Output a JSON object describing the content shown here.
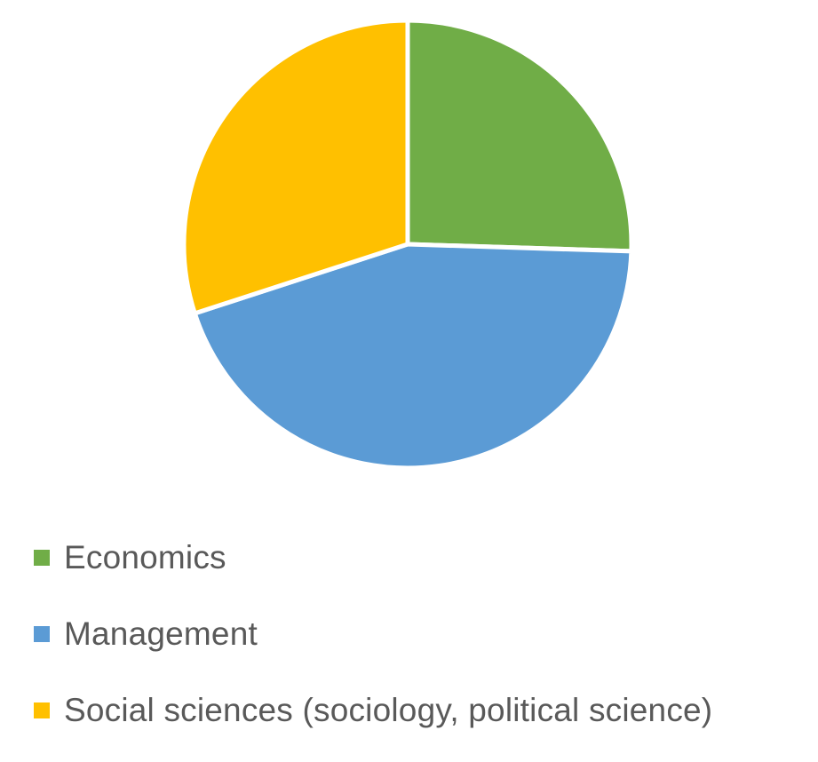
{
  "chart_data": {
    "type": "pie",
    "title": "",
    "categories": [
      "Economics",
      "Management",
      "Social sciences (sociology, political science)"
    ],
    "values": [
      25.5,
      44.5,
      30.0
    ],
    "colors": [
      "#70AD47",
      "#5B9BD5",
      "#FFC000"
    ],
    "start_angle_deg": 0,
    "direction": "clockwise",
    "legend_position": "bottom",
    "legend": [
      {
        "label": "Economics",
        "color": "#70AD47"
      },
      {
        "label": "Management",
        "color": "#5B9BD5"
      },
      {
        "label": "Social sciences (sociology, political science)",
        "color": "#FFC000"
      }
    ]
  }
}
